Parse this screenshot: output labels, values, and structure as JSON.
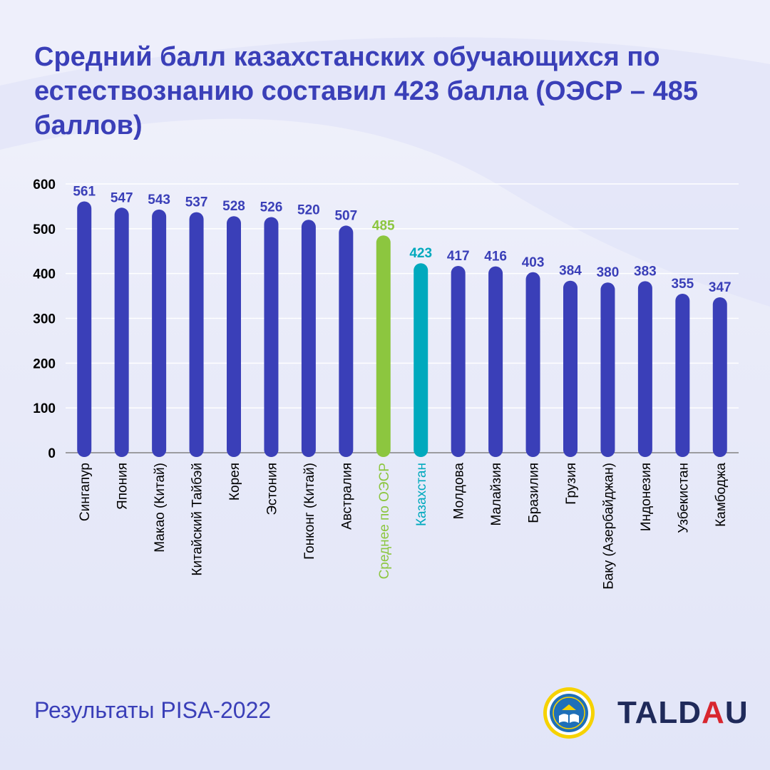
{
  "title": "Средний балл казахстанских обучающихся по естествознанию составил 423 балла (ОЭСР – 485 баллов)",
  "footer": {
    "source_text": "Результаты PISA-2022"
  },
  "logo": {
    "text_before": "TALD",
    "accent": "A",
    "text_after": "U"
  },
  "emblem": {
    "icon": "open-book-seal-icon"
  },
  "colors": {
    "title": "#3a3fb8",
    "bar_default": "#3a3fb8",
    "bar_oecd": "#8cc63f",
    "bar_kazakhstan": "#00a9bd",
    "value_label_default": "#3a3fb8",
    "axis_text": "#000000",
    "gridline": "#ffffff"
  },
  "chart_data": {
    "type": "bar",
    "title": "Средний балл казахстанских обучающихся по естествознанию составил 423 балла (ОЭСР – 485 баллов)",
    "xlabel": "",
    "ylabel": "",
    "ylim": [
      0,
      600
    ],
    "yticks": [
      0,
      100,
      200,
      300,
      400,
      500,
      600
    ],
    "grid": true,
    "categories": [
      "Сингапур",
      "Япония",
      "Макао (Китай)",
      "Китайский Тайбэй",
      "Корея",
      "Эстония",
      "Гонконг (Китай)",
      "Австралия",
      "Среднее по ОЭСР",
      "Казахстан",
      "Молдова",
      "Малайзия",
      "Бразилия",
      "Грузия",
      "Баку (Азербайджан)",
      "Индонезия",
      "Узбекистан",
      "Камбоджа"
    ],
    "values": [
      561,
      547,
      543,
      537,
      528,
      526,
      520,
      507,
      485,
      423,
      417,
      416,
      403,
      384,
      380,
      383,
      355,
      347
    ],
    "highlights": {
      "Среднее по ОЭСР": "#8cc63f",
      "Казахстан": "#00a9bd"
    }
  }
}
